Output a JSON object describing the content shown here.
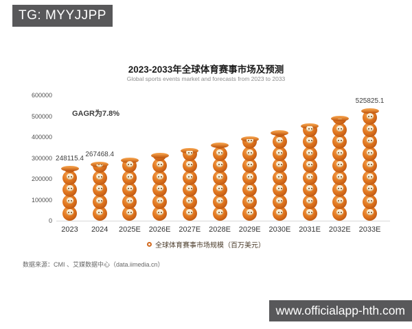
{
  "watermarks": {
    "top": "TG: MYYJJPP",
    "bottom": "www.officialapp-hth.com"
  },
  "chart_data": {
    "type": "bar",
    "style": "pictorial-stacked-orange-balls",
    "title": "2023-2033年全球体育赛事市场及预测",
    "subtitle": "Global sports events market and forecasts from 2023 to 2033",
    "annotation": "GAGR为7.8%",
    "categories": [
      "2023",
      "2024",
      "2025E",
      "2026E",
      "2027E",
      "2028E",
      "2029E",
      "2030E",
      "2031E",
      "2032E",
      "2033E"
    ],
    "values": [
      248115.4,
      267468.4,
      288331.0,
      310820.8,
      335064.8,
      361199.9,
      389373.5,
      419744.6,
      452484.7,
      487778.5,
      525825.1
    ],
    "data_labels": [
      "248115.4",
      "267468.4",
      "",
      "",
      "",
      "",
      "",
      "",
      "",
      "",
      "525825.1"
    ],
    "ylim": [
      0,
      600000
    ],
    "y_ticks": [
      600000,
      500000,
      400000,
      300000,
      200000,
      100000,
      0
    ],
    "grid": "off",
    "legend": "全球体育赛事市场规模（百万美元）",
    "legend_position": "bottom",
    "source_note": "数据来源：CMI 、艾媒数据中心（data.iimedia.cn）",
    "bar_color": "#e0761f"
  }
}
